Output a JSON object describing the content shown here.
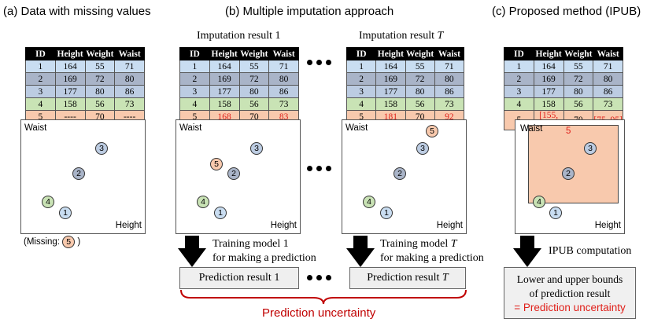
{
  "panels": {
    "a_title": "(a) Data with missing values",
    "b_title": "(b) Multiple imputation approach",
    "c_title": "(c) Proposed method (IPUB)"
  },
  "table_headers": [
    "ID",
    "Height",
    "Weight",
    "Waist"
  ],
  "table_a": [
    [
      "1",
      "164",
      "55",
      "71"
    ],
    [
      "2",
      "169",
      "72",
      "80"
    ],
    [
      "3",
      "177",
      "80",
      "86"
    ],
    [
      "4",
      "158",
      "56",
      "73"
    ],
    [
      "5",
      "----",
      "70",
      "----"
    ]
  ],
  "table_b1": [
    [
      "1",
      "164",
      "55",
      "71"
    ],
    [
      "2",
      "169",
      "72",
      "80"
    ],
    [
      "3",
      "177",
      "80",
      "86"
    ],
    [
      "4",
      "158",
      "56",
      "73"
    ],
    [
      "5",
      "168",
      "70",
      "83"
    ]
  ],
  "table_bT": [
    [
      "1",
      "164",
      "55",
      "71"
    ],
    [
      "2",
      "169",
      "72",
      "80"
    ],
    [
      "3",
      "177",
      "80",
      "86"
    ],
    [
      "4",
      "158",
      "56",
      "73"
    ],
    [
      "5",
      "181",
      "70",
      "92"
    ]
  ],
  "table_c": [
    [
      "1",
      "164",
      "55",
      "71"
    ],
    [
      "2",
      "169",
      "72",
      "80"
    ],
    [
      "3",
      "177",
      "80",
      "86"
    ],
    [
      "4",
      "158",
      "56",
      "73"
    ],
    [
      "5",
      "[155, 185]",
      "70",
      "[75, 95]"
    ]
  ],
  "imputation_1": {
    "label": "Imputation result",
    "index": "1"
  },
  "imputation_T": {
    "label": "Imputation result",
    "index": "T"
  },
  "axis": {
    "y": "Waist",
    "x": "Height"
  },
  "points": [
    "1",
    "2",
    "3",
    "4",
    "5"
  ],
  "missing_note": {
    "prefix": "(Missing:",
    "id": "5",
    "suffix": ")"
  },
  "train_1": {
    "line1_prefix": "Training model ",
    "index": "1",
    "line2": "for making a prediction"
  },
  "train_T": {
    "line1_prefix": "Training model ",
    "index": "T",
    "line2": "for making a prediction"
  },
  "pred_1": {
    "prefix": "Prediction result ",
    "index": "1"
  },
  "pred_T": {
    "prefix": "Prediction result ",
    "index": "T"
  },
  "uncertainty_label": "Prediction uncertainty",
  "ipub_label": "IPUB computation",
  "final_box": {
    "line1": "Lower and upper bounds",
    "line2": "of prediction result",
    "line3": "= Prediction uncertainty"
  },
  "colors": {
    "accent_red": "#e0201a",
    "brace_red": "#c00000"
  }
}
